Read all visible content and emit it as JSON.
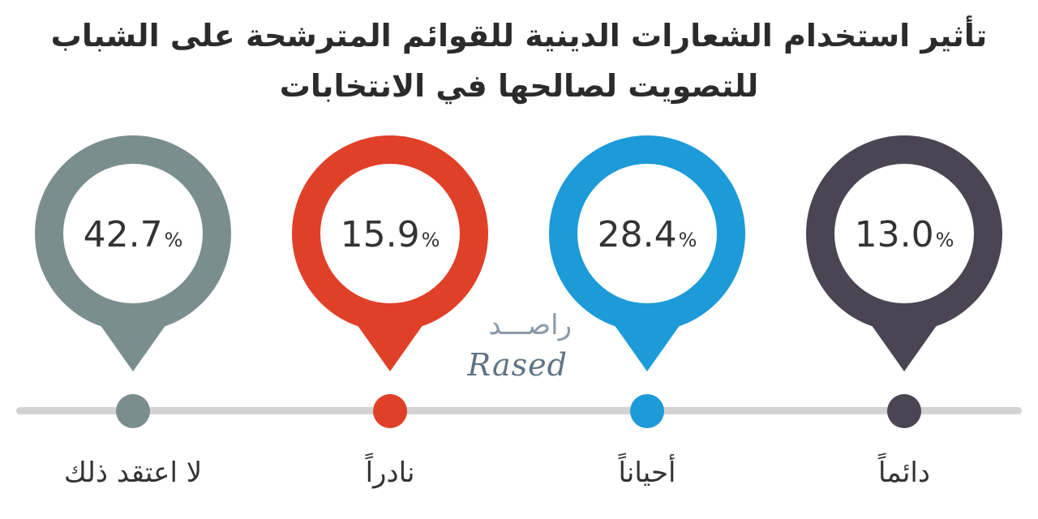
{
  "title": {
    "line1": "تأثير استخدام الشعارات الدينية للقوائم المترشحة على الشباب",
    "line2": "للتصويت لصالحها في الانتخابات"
  },
  "logo": {
    "arabic": "راصـــد",
    "latin": "Rased"
  },
  "chart_data": {
    "type": "bar",
    "title": "تأثير استخدام الشعارات الدينية للقوائم المترشحة على الشباب للتصويت لصالحها في الانتخابات",
    "categories": [
      "لا اعتقد ذلك",
      "نادراً",
      "أحياناً",
      "دائماً"
    ],
    "values": [
      42.7,
      15.9,
      28.4,
      13.0
    ],
    "display_values": [
      "42.7",
      "15.9",
      "28.4",
      "13.0"
    ],
    "unit": "%",
    "colors": [
      "#7b8e8e",
      "#e04028",
      "#1d9ad8",
      "#4a4552"
    ],
    "timeline_color": "#d3d3d3",
    "grid": false
  }
}
